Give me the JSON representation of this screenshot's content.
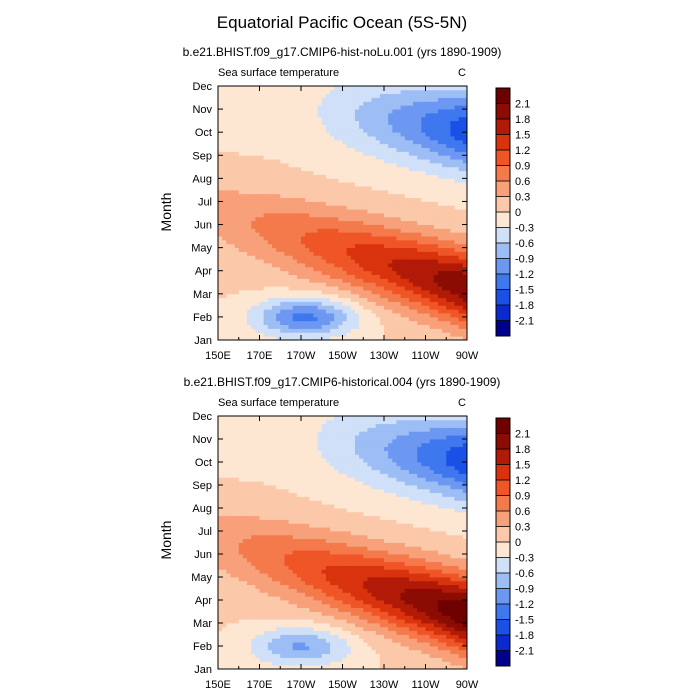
{
  "figure": {
    "title": "Equatorial Pacific Ocean (5S-5N)"
  },
  "chart_data": [
    {
      "type": "heatmap",
      "title": "b.e21.BHIST.f09_g17.CMIP6-hist-noLu.001 (yrs 1890-1909)",
      "variable": "Sea surface temperature",
      "units": "C",
      "xlabel": "",
      "ylabel": "Month",
      "x_ticks": [
        "150E",
        "170E",
        "170W",
        "150W",
        "130W",
        "110W",
        "90W"
      ],
      "y_ticks": [
        "Jan",
        "Feb",
        "Mar",
        "Apr",
        "May",
        "Jun",
        "Jul",
        "Aug",
        "Sep",
        "Oct",
        "Nov",
        "Dec"
      ],
      "xlim": [
        150,
        270
      ],
      "ylim": [
        1,
        12
      ],
      "pattern": {
        "seasonal_warm_peak_month": 3.3,
        "warm_max": 2.05,
        "cold_min": -1.7,
        "feb_cold_pool_center_lon": 192,
        "feb_cold_pool_min": -1.3,
        "propagation": "westward"
      }
    },
    {
      "type": "heatmap",
      "title": "b.e21.BHIST.f09_g17.CMIP6-historical.004 (yrs 1890-1909)",
      "variable": "Sea surface temperature",
      "units": "C",
      "xlabel": "",
      "ylabel": "Month",
      "x_ticks": [
        "150E",
        "170E",
        "170W",
        "150W",
        "130W",
        "110W",
        "90W"
      ],
      "y_ticks": [
        "Jan",
        "Feb",
        "Mar",
        "Apr",
        "May",
        "Jun",
        "Jul",
        "Aug",
        "Sep",
        "Oct",
        "Nov",
        "Dec"
      ],
      "xlim": [
        150,
        270
      ],
      "ylim": [
        1,
        12
      ],
      "pattern": {
        "seasonal_warm_peak_month": 3.4,
        "warm_max": 2.35,
        "cold_min": -1.75,
        "feb_cold_pool_center_lon": 190,
        "feb_cold_pool_min": -0.95,
        "propagation": "westward"
      }
    }
  ],
  "colorbar": {
    "levels": [
      -2.1,
      -1.8,
      -1.5,
      -1.2,
      -0.9,
      -0.6,
      -0.3,
      0,
      0.3,
      0.6,
      0.9,
      1.2,
      1.5,
      1.8,
      2.1
    ],
    "labels": [
      "-2.1",
      "-1.8",
      "-1.5",
      "-1.2",
      "-0.9",
      "-0.6",
      "-0.3",
      "0",
      "0.3",
      "0.6",
      "0.9",
      "1.2",
      "1.5",
      "1.8",
      "2.1"
    ],
    "colors": [
      "#00008c",
      "#0a2ad0",
      "#1b50e6",
      "#3f77ee",
      "#6c98f2",
      "#9dbdf5",
      "#cfe0f8",
      "#fde6d2",
      "#fbc9a9",
      "#f7a07a",
      "#f47a4c",
      "#ef5527",
      "#d9330e",
      "#b01a06",
      "#8a0c02",
      "#6e0000"
    ]
  }
}
